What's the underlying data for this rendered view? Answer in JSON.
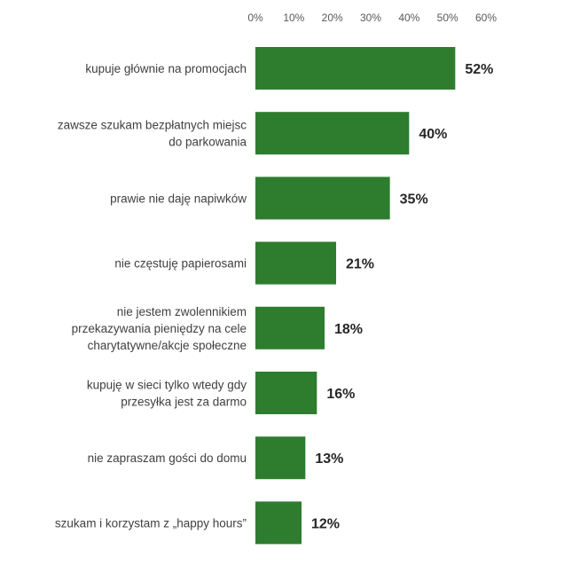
{
  "chart_data": {
    "type": "bar",
    "orientation": "horizontal",
    "title": "",
    "xlabel": "",
    "ylabel": "",
    "xaxis_position": "top",
    "xlim": [
      0,
      60
    ],
    "ticks": [
      "0%",
      "10%",
      "20%",
      "30%",
      "40%",
      "50%",
      "60%"
    ],
    "tick_values": [
      0,
      10,
      20,
      30,
      40,
      50,
      60
    ],
    "grid": false,
    "legend": "none",
    "bar_color": "#2e7d2e",
    "categories": [
      [
        "kupuje głównie na promocjach"
      ],
      [
        "zawsze szukam bezpłatnych miejsc",
        "do parkowania"
      ],
      [
        "prawie nie daję napiwków"
      ],
      [
        "nie częstuję papierosami"
      ],
      [
        "nie jestem zwolennikiem",
        "przekazywania pieniędzy na cele",
        "charytatywne/akcje społeczne"
      ],
      [
        "kupuję w sieci tylko wtedy gdy",
        "przesyłka jest za darmo"
      ],
      [
        "nie zapraszam gości do domu"
      ],
      [
        "szukam i korzystam z „happy hours”"
      ]
    ],
    "values": [
      52,
      40,
      35,
      21,
      18,
      16,
      13,
      12
    ],
    "value_labels": [
      "52%",
      "40%",
      "35%",
      "21%",
      "18%",
      "16%",
      "13%",
      "12%"
    ]
  }
}
